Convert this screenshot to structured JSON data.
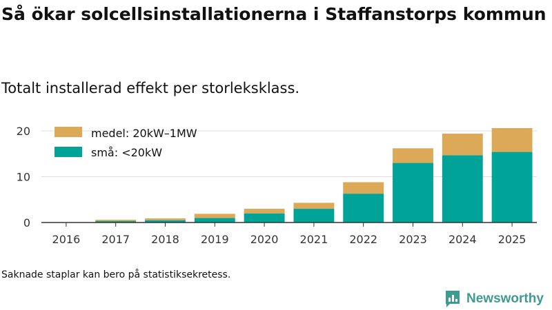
{
  "chart_data": {
    "type": "bar",
    "stacked": true,
    "title": "Så ökar solcellsinstallationerna i Staffanstorps kommun",
    "subtitle": "Totalt installerad effekt per storleksklass.",
    "categories": [
      "2016",
      "2017",
      "2018",
      "2019",
      "2020",
      "2021",
      "2022",
      "2023",
      "2024",
      "2025"
    ],
    "series": [
      {
        "name": "små: <20kW",
        "color": "#00a398",
        "values": [
          0,
          0.3,
          0.5,
          1.0,
          2.0,
          3.0,
          6.3,
          13.0,
          14.7,
          15.4
        ]
      },
      {
        "name": "medel: 20kW–1MW",
        "color": "#dba957",
        "values": [
          0,
          0.3,
          0.4,
          0.9,
          1.0,
          1.3,
          2.5,
          3.2,
          4.7,
          5.2
        ]
      }
    ],
    "y_ticks": [
      "0",
      "10",
      "20"
    ],
    "ylim": [
      0,
      20.6
    ],
    "grid": true,
    "legend_position": "top-left"
  },
  "footnote": "Saknade staplar kan bero på statistiksekretess.",
  "brand": {
    "name": "Newsworthy",
    "color": "#3f9a8f"
  }
}
